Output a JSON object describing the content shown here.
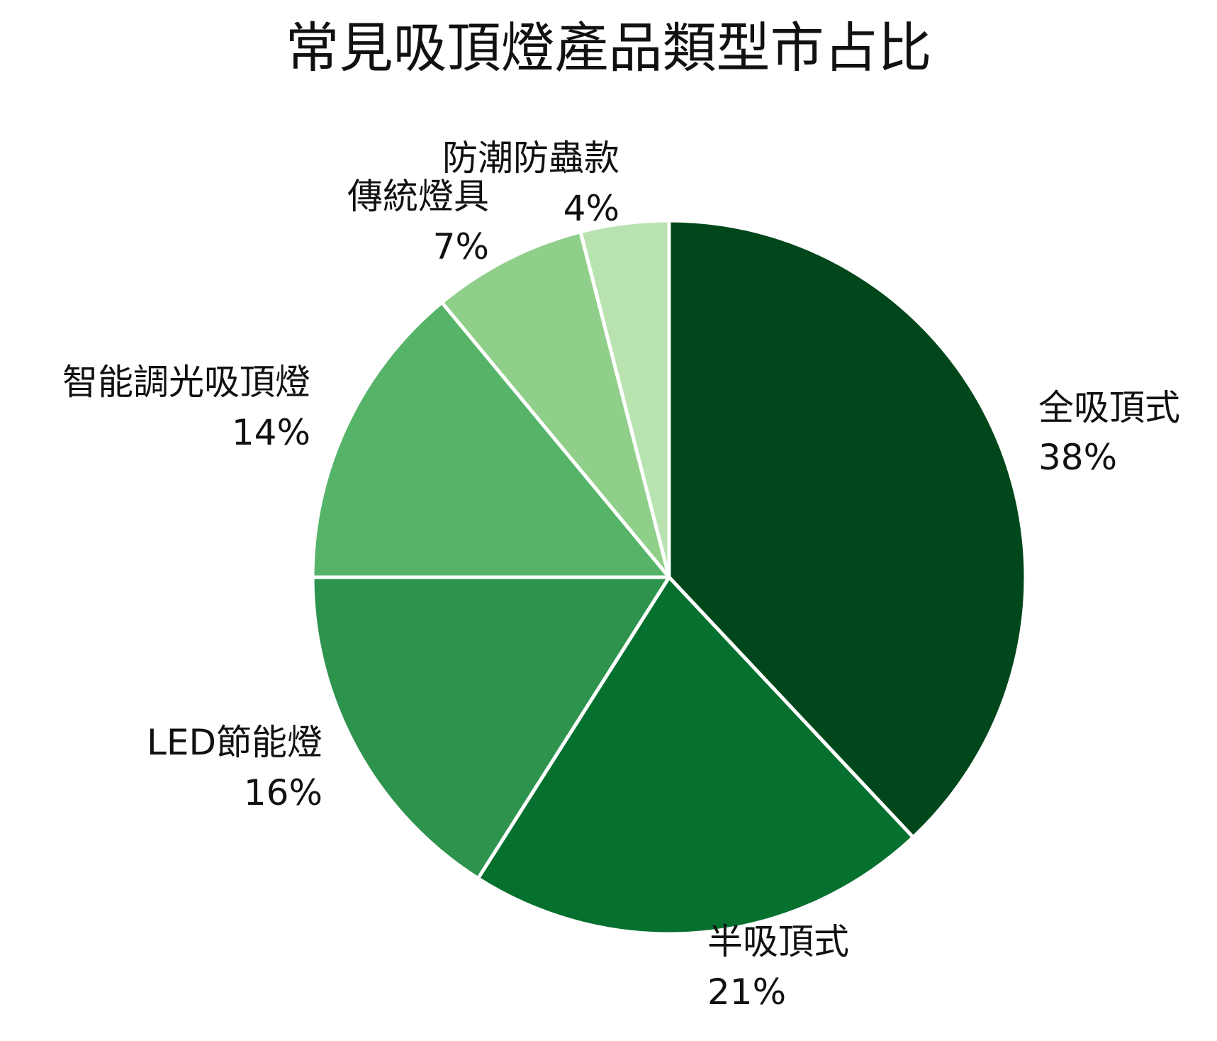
{
  "chart_data": {
    "type": "pie",
    "title": "常見吸頂燈產品類型市占比",
    "slices": [
      {
        "label": "全吸頂式",
        "value": 38,
        "value_label": "38%",
        "color": "#00471b"
      },
      {
        "label": "半吸頂式",
        "value": 21,
        "value_label": "21%",
        "color": "#06702f"
      },
      {
        "label": "LED節能燈",
        "value": 16,
        "value_label": "16%",
        "color": "#2d934d"
      },
      {
        "label": "智能調光吸頂燈",
        "value": 14,
        "value_label": "14%",
        "color": "#56b468"
      },
      {
        "label": "傳統燈具",
        "value": 7,
        "value_label": "7%",
        "color": "#90cf89"
      },
      {
        "label": "防潮防蟲款",
        "value": 4,
        "value_label": "4%",
        "color": "#b8e3b1"
      }
    ],
    "start_angle": "12 o'clock",
    "direction": "clockwise",
    "legend": "none",
    "slice_border_color": "#ffffff"
  }
}
